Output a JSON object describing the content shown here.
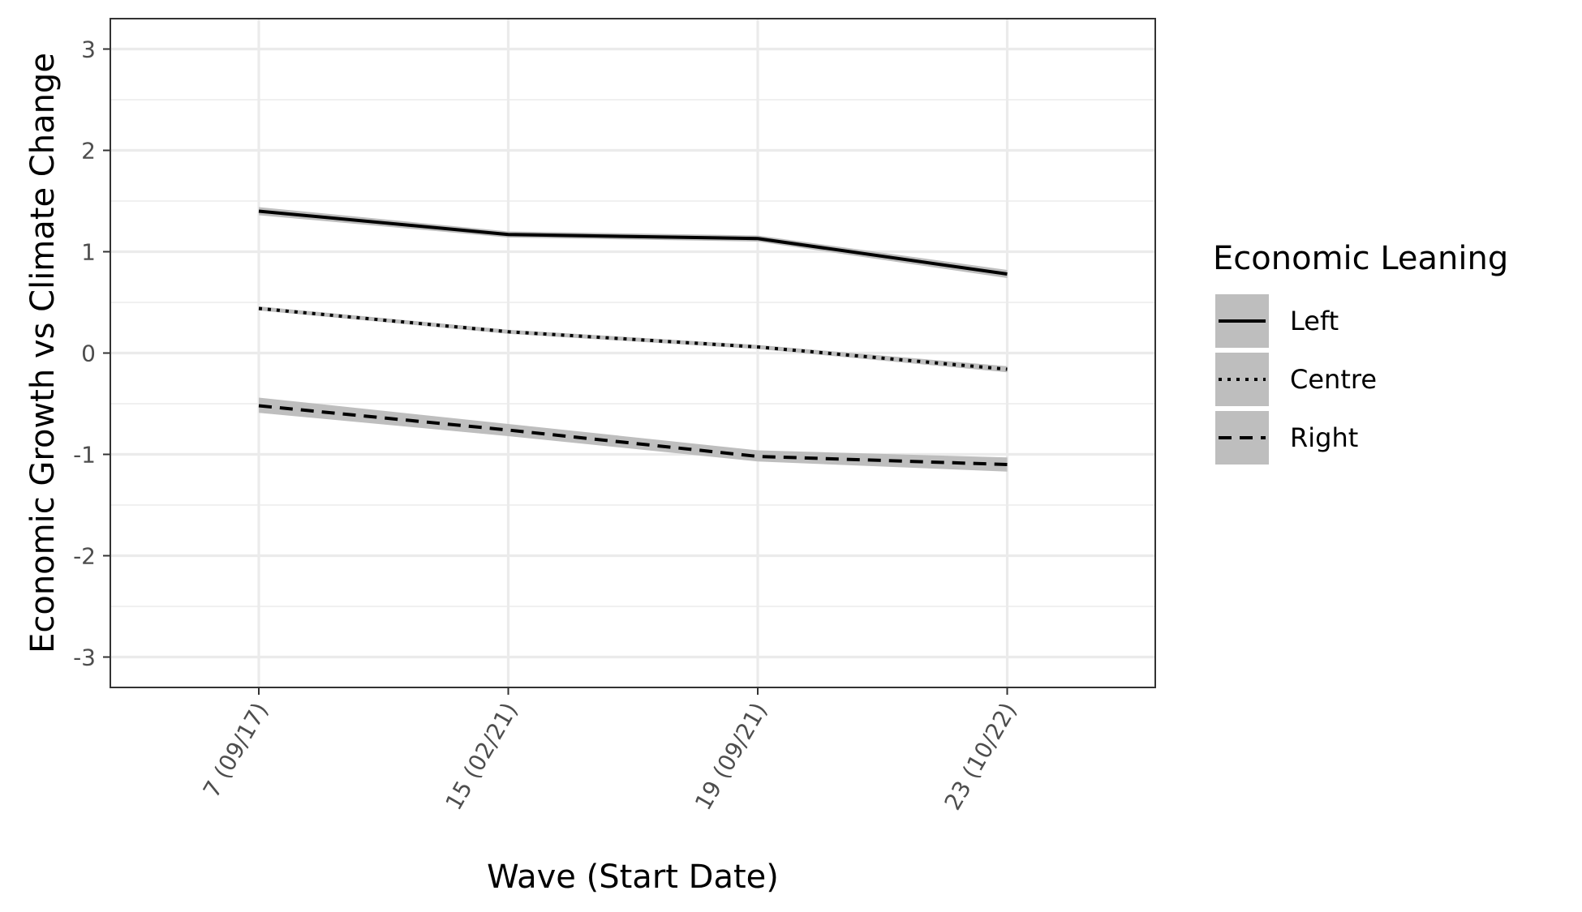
{
  "chart_data": {
    "type": "line",
    "xlabel": "Wave (Start Date)",
    "ylabel": "Economic Growth vs Climate Change",
    "categories": [
      "7 (09/17)",
      "15 (02/21)",
      "19 (09/21)",
      "23 (10/22)"
    ],
    "y_ticks": [
      3,
      2,
      1,
      0,
      -1,
      -2,
      -3
    ],
    "ylim": [
      -3.3,
      3.3
    ],
    "grid": true,
    "legend": {
      "title": "Economic Leaning",
      "placement": "right"
    },
    "series": [
      {
        "name": "Left",
        "dash": "solid",
        "values": [
          1.4,
          1.17,
          1.13,
          0.78
        ],
        "lower": [
          1.36,
          1.14,
          1.1,
          0.74
        ],
        "upper": [
          1.44,
          1.2,
          1.16,
          0.82
        ]
      },
      {
        "name": "Centre",
        "dash": "dotted",
        "values": [
          0.44,
          0.21,
          0.06,
          -0.16
        ],
        "lower": [
          0.42,
          0.19,
          0.04,
          -0.19
        ],
        "upper": [
          0.46,
          0.23,
          0.08,
          -0.13
        ]
      },
      {
        "name": "Right",
        "dash": "dashed",
        "values": [
          -0.52,
          -0.76,
          -1.02,
          -1.1
        ],
        "lower": [
          -0.59,
          -0.82,
          -1.07,
          -1.17
        ],
        "upper": [
          -0.44,
          -0.7,
          -0.96,
          -1.03
        ]
      }
    ],
    "colors": {
      "line": "#000000",
      "ribbon": "#bebebe",
      "grid": "#ebebeb",
      "panel_border": "#333333"
    }
  }
}
